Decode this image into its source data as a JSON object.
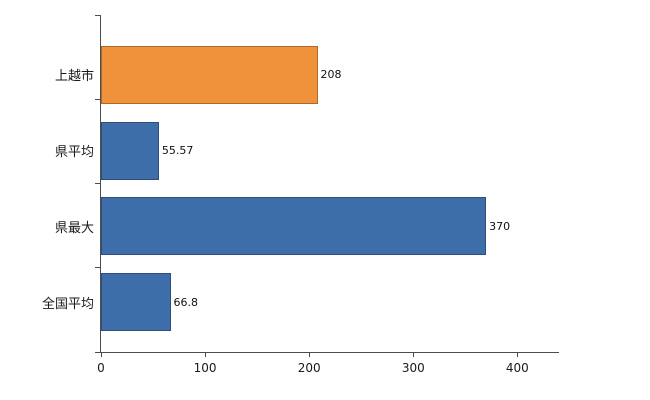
{
  "chart_data": {
    "type": "bar",
    "orientation": "horizontal",
    "title": "",
    "categories": [
      "上越市",
      "県平均",
      "県最大",
      "全国平均"
    ],
    "values": [
      208,
      55.57,
      370,
      66.8
    ],
    "value_labels": [
      "208",
      "55.57",
      "370",
      "66.8"
    ],
    "bar_colors": [
      "#f0923b",
      "#3d6ea9",
      "#3d6ea9",
      "#3d6ea9"
    ],
    "xlim": [
      0,
      440
    ],
    "x_tick_values": [
      0,
      100,
      200,
      300,
      400
    ],
    "x_tick_labels": [
      "0",
      "100",
      "200",
      "300",
      "400"
    ],
    "grid": false,
    "legend": "none",
    "axis_color": "#4d4d4d",
    "background": "#ffffff"
  }
}
